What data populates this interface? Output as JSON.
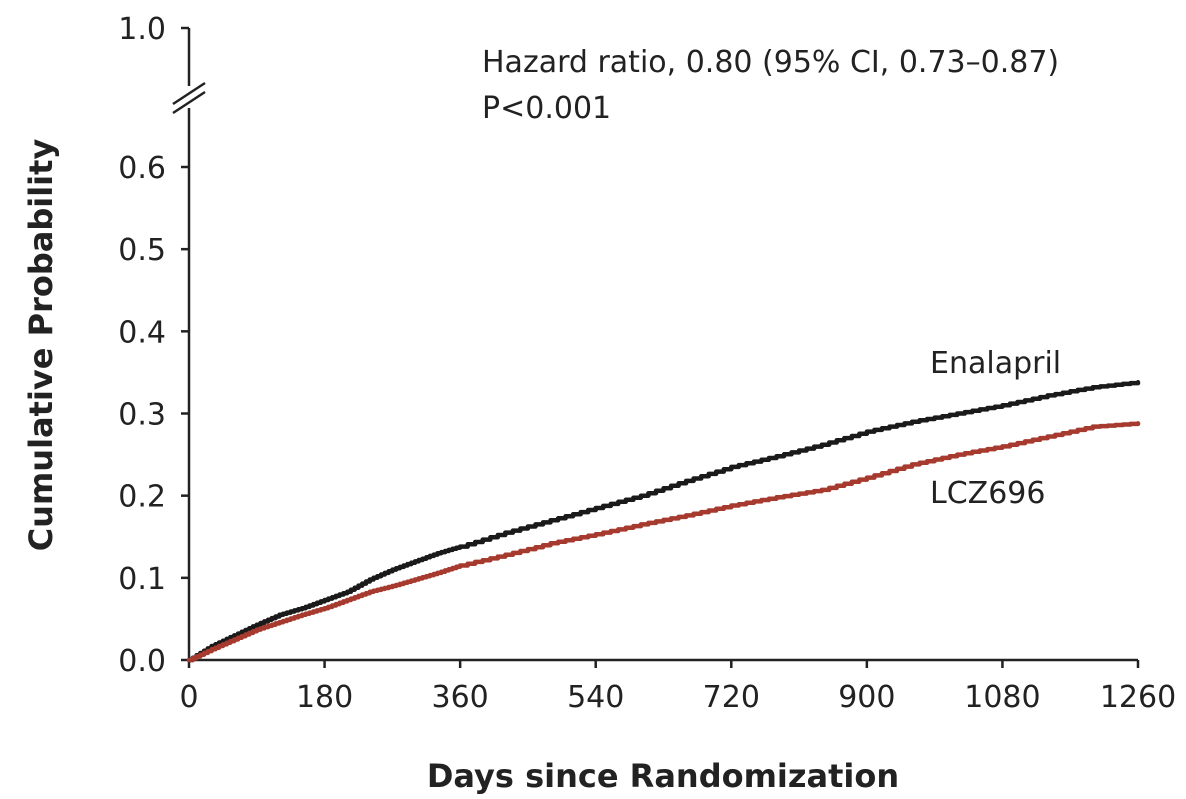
{
  "chart_data": {
    "type": "line",
    "xlabel": "Days since Randomization",
    "ylabel": "Cumulative Probability",
    "xlim": [
      0,
      1260
    ],
    "ylim": [
      0,
      0.6
    ],
    "y_axis_break": true,
    "x_ticks": [
      0,
      180,
      360,
      540,
      720,
      900,
      1080,
      1260
    ],
    "x_tick_labels": [
      "0",
      "180",
      "360",
      "540",
      "720",
      "900",
      "1080",
      "1260"
    ],
    "y_ticks": [
      0.0,
      0.1,
      0.2,
      0.3,
      0.4,
      0.5,
      0.6
    ],
    "y_tick_labels": [
      "0.0",
      "0.1",
      "0.2",
      "0.3",
      "0.4",
      "0.5",
      "0.6"
    ],
    "y_top_tick_label": "1.0",
    "annotation": {
      "line1": "Hazard ratio, 0.80 (95% CI, 0.73–0.87)",
      "line2": "P<0.001"
    },
    "series": [
      {
        "name": "Enalapril",
        "color": "#1a1a1a",
        "x": [
          0,
          30,
          60,
          90,
          120,
          150,
          180,
          210,
          240,
          270,
          300,
          330,
          360,
          420,
          480,
          540,
          600,
          660,
          720,
          780,
          840,
          900,
          960,
          1020,
          1080,
          1140,
          1200,
          1260
        ],
        "y": [
          0.0,
          0.017,
          0.03,
          0.043,
          0.055,
          0.063,
          0.073,
          0.083,
          0.098,
          0.11,
          0.12,
          0.13,
          0.138,
          0.155,
          0.17,
          0.185,
          0.2,
          0.218,
          0.235,
          0.248,
          0.262,
          0.278,
          0.29,
          0.3,
          0.31,
          0.322,
          0.332,
          0.338
        ]
      },
      {
        "name": "LCZ696",
        "color": "#a63a2e",
        "x": [
          0,
          30,
          60,
          90,
          120,
          150,
          180,
          210,
          240,
          270,
          300,
          330,
          360,
          420,
          480,
          540,
          600,
          660,
          720,
          780,
          840,
          900,
          960,
          1020,
          1080,
          1140,
          1200,
          1260
        ],
        "y": [
          0.0,
          0.013,
          0.025,
          0.037,
          0.046,
          0.055,
          0.063,
          0.073,
          0.083,
          0.09,
          0.098,
          0.106,
          0.115,
          0.128,
          0.142,
          0.153,
          0.165,
          0.176,
          0.188,
          0.198,
          0.207,
          0.222,
          0.238,
          0.25,
          0.26,
          0.272,
          0.284,
          0.288
        ]
      }
    ]
  }
}
